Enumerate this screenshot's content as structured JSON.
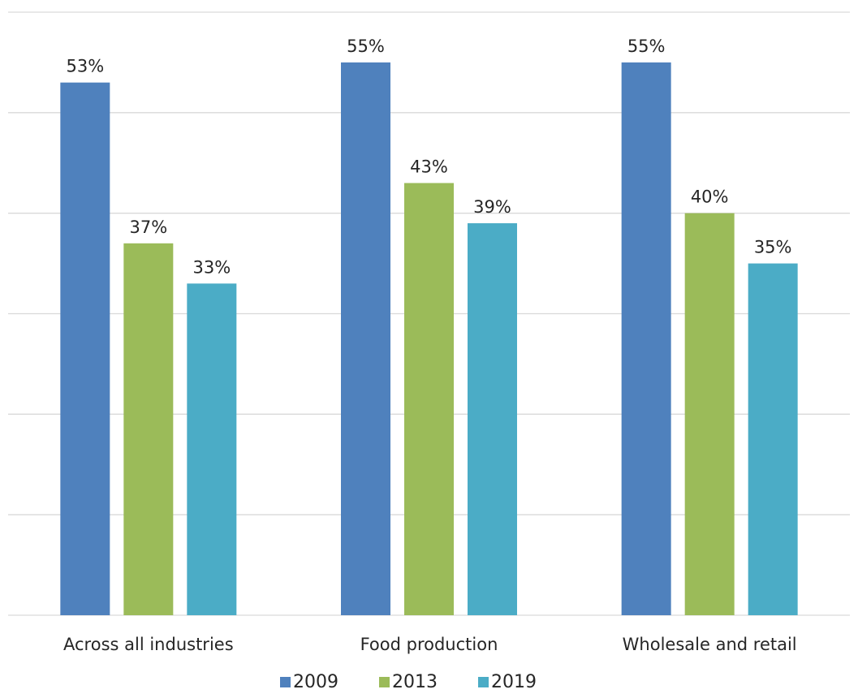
{
  "chart_data": {
    "type": "bar",
    "categories": [
      "Across all industries",
      "Food production",
      "Wholesale and retail"
    ],
    "series": [
      {
        "name": "2009",
        "values": [
          53,
          55,
          55
        ],
        "labels": [
          "53%",
          "55%",
          "55%"
        ],
        "color": "#4f81bd"
      },
      {
        "name": "2013",
        "values": [
          37,
          43,
          40
        ],
        "labels": [
          "37%",
          "43%",
          "40%"
        ],
        "color": "#9bbb59"
      },
      {
        "name": "2019",
        "values": [
          33,
          39,
          35
        ],
        "labels": [
          "33%",
          "39%",
          "35%"
        ],
        "color": "#4bacc6"
      }
    ],
    "title": "",
    "xlabel": "",
    "ylabel": "",
    "ylim": [
      0,
      60
    ],
    "grid": true,
    "legend_position": "bottom-center"
  }
}
